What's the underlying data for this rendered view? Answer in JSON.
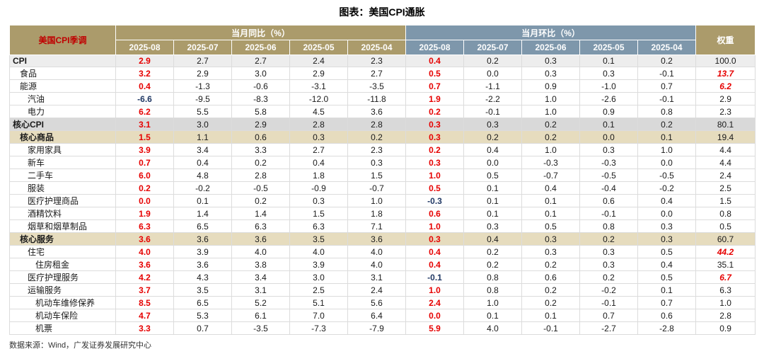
{
  "page": {
    "title": "图表：美国CPI通胀",
    "footer": "数据来源：Wind，广发证券发展研究中心"
  },
  "colors": {
    "tan": "#AB9B6B",
    "blue": "#7E97AB",
    "red": "#E60000",
    "navy": "#203864",
    "corner_red": "#C00000",
    "row_cpi": "#EDEDED",
    "row_gray": "#D9D9D9",
    "row_cream": "#E6DCBE"
  },
  "chart_data": {
    "type": "table",
    "title": "图表：美国CPI通胀",
    "corner_label": "美国CPI季调",
    "yoy_header": "当月同比（%）",
    "mom_header": "当月环比（%）",
    "weight_header": "权重",
    "months": [
      "2025-08",
      "2025-07",
      "2025-06",
      "2025-05",
      "2025-04"
    ],
    "rows": [
      {
        "label": "CPI",
        "indent": 0,
        "bold": true,
        "bg": "cpi",
        "yoy": [
          "2.9",
          "2.7",
          "2.7",
          "2.4",
          "2.3"
        ],
        "mom": [
          "0.4",
          "0.2",
          "0.3",
          "0.1",
          "0.2"
        ],
        "weight": "100.0",
        "weight_red": false
      },
      {
        "label": "食品",
        "indent": 1,
        "bold": false,
        "bg": null,
        "yoy": [
          "3.2",
          "2.9",
          "3.0",
          "2.9",
          "2.7"
        ],
        "mom": [
          "0.5",
          "0.0",
          "0.3",
          "0.3",
          "-0.1"
        ],
        "weight": "13.7",
        "weight_red": true
      },
      {
        "label": "能源",
        "indent": 1,
        "bold": false,
        "bg": null,
        "yoy": [
          "0.4",
          "-1.3",
          "-0.6",
          "-3.1",
          "-3.5"
        ],
        "mom": [
          "0.7",
          "-1.1",
          "0.9",
          "-1.0",
          "0.7"
        ],
        "weight": "6.2",
        "weight_red": true
      },
      {
        "label": "汽油",
        "indent": 2,
        "bold": false,
        "bg": null,
        "yoy": [
          "-6.6",
          "-9.5",
          "-8.3",
          "-12.0",
          "-11.8"
        ],
        "mom": [
          "1.9",
          "-2.2",
          "1.0",
          "-2.6",
          "-0.1"
        ],
        "weight": "2.9",
        "weight_red": false
      },
      {
        "label": "电力",
        "indent": 2,
        "bold": false,
        "bg": null,
        "yoy": [
          "6.2",
          "5.5",
          "5.8",
          "4.5",
          "3.6"
        ],
        "mom": [
          "0.2",
          "-0.1",
          "1.0",
          "0.9",
          "0.8"
        ],
        "weight": "2.3",
        "weight_red": false
      },
      {
        "label": "核心CPI",
        "indent": 0,
        "bold": true,
        "bg": "gray",
        "yoy": [
          "3.1",
          "3.0",
          "2.9",
          "2.8",
          "2.8"
        ],
        "mom": [
          "0.3",
          "0.3",
          "0.2",
          "0.1",
          "0.2"
        ],
        "weight": "80.1",
        "weight_red": false
      },
      {
        "label": "核心商品",
        "indent": 1,
        "bold": true,
        "bg": "cream",
        "yoy": [
          "1.5",
          "1.1",
          "0.6",
          "0.3",
          "0.2"
        ],
        "mom": [
          "0.3",
          "0.2",
          "0.2",
          "0.0",
          "0.1"
        ],
        "weight": "19.4",
        "weight_red": false
      },
      {
        "label": "家用家具",
        "indent": 2,
        "bold": false,
        "bg": null,
        "yoy": [
          "3.9",
          "3.4",
          "3.3",
          "2.7",
          "2.3"
        ],
        "mom": [
          "0.2",
          "0.4",
          "1.0",
          "0.3",
          "1.0"
        ],
        "weight": "4.4",
        "weight_red": false
      },
      {
        "label": "新车",
        "indent": 2,
        "bold": false,
        "bg": null,
        "yoy": [
          "0.7",
          "0.4",
          "0.2",
          "0.4",
          "0.3"
        ],
        "mom": [
          "0.3",
          "0.0",
          "-0.3",
          "-0.3",
          "0.0"
        ],
        "weight": "4.4",
        "weight_red": false
      },
      {
        "label": "二手车",
        "indent": 2,
        "bold": false,
        "bg": null,
        "yoy": [
          "6.0",
          "4.8",
          "2.8",
          "1.8",
          "1.5"
        ],
        "mom": [
          "1.0",
          "0.5",
          "-0.7",
          "-0.5",
          "-0.5"
        ],
        "weight": "2.4",
        "weight_red": false
      },
      {
        "label": "服装",
        "indent": 2,
        "bold": false,
        "bg": null,
        "yoy": [
          "0.2",
          "-0.2",
          "-0.5",
          "-0.9",
          "-0.7"
        ],
        "mom": [
          "0.5",
          "0.1",
          "0.4",
          "-0.4",
          "-0.2"
        ],
        "weight": "2.5",
        "weight_red": false
      },
      {
        "label": "医疗护理商品",
        "indent": 2,
        "bold": false,
        "bg": null,
        "yoy": [
          "0.0",
          "0.1",
          "0.2",
          "0.3",
          "1.0"
        ],
        "mom": [
          "-0.3",
          "0.1",
          "0.1",
          "0.6",
          "0.4"
        ],
        "weight": "1.5",
        "weight_red": false
      },
      {
        "label": "酒精饮料",
        "indent": 2,
        "bold": false,
        "bg": null,
        "yoy": [
          "1.9",
          "1.4",
          "1.4",
          "1.5",
          "1.8"
        ],
        "mom": [
          "0.6",
          "0.1",
          "0.1",
          "-0.1",
          "0.0"
        ],
        "weight": "0.8",
        "weight_red": false
      },
      {
        "label": "烟草和烟草制品",
        "indent": 2,
        "bold": false,
        "bg": null,
        "yoy": [
          "6.3",
          "6.5",
          "6.3",
          "6.3",
          "7.1"
        ],
        "mom": [
          "1.0",
          "0.3",
          "0.5",
          "0.8",
          "0.3"
        ],
        "weight": "0.5",
        "weight_red": false
      },
      {
        "label": "核心服务",
        "indent": 1,
        "bold": true,
        "bg": "cream",
        "yoy": [
          "3.6",
          "3.6",
          "3.6",
          "3.5",
          "3.6"
        ],
        "mom": [
          "0.3",
          "0.4",
          "0.3",
          "0.2",
          "0.3"
        ],
        "weight": "60.7",
        "weight_red": false
      },
      {
        "label": "住宅",
        "indent": 2,
        "bold": false,
        "bg": null,
        "yoy": [
          "4.0",
          "3.9",
          "4.0",
          "4.0",
          "4.0"
        ],
        "mom": [
          "0.4",
          "0.2",
          "0.3",
          "0.3",
          "0.5"
        ],
        "weight": "44.2",
        "weight_red": true
      },
      {
        "label": "住房租金",
        "indent": 3,
        "bold": false,
        "bg": null,
        "yoy": [
          "3.6",
          "3.6",
          "3.8",
          "3.9",
          "4.0"
        ],
        "mom": [
          "0.4",
          "0.2",
          "0.2",
          "0.3",
          "0.4"
        ],
        "weight": "35.1",
        "weight_red": false
      },
      {
        "label": "医疗护理服务",
        "indent": 2,
        "bold": false,
        "bg": null,
        "yoy": [
          "4.2",
          "4.3",
          "3.4",
          "3.0",
          "3.1"
        ],
        "mom": [
          "-0.1",
          "0.8",
          "0.6",
          "0.2",
          "0.5"
        ],
        "weight": "6.7",
        "weight_red": true
      },
      {
        "label": "运输服务",
        "indent": 2,
        "bold": false,
        "bg": null,
        "yoy": [
          "3.7",
          "3.5",
          "3.1",
          "2.5",
          "2.4"
        ],
        "mom": [
          "1.0",
          "0.8",
          "0.2",
          "-0.2",
          "0.1"
        ],
        "weight": "6.3",
        "weight_red": false
      },
      {
        "label": "机动车维修保养",
        "indent": 3,
        "bold": false,
        "bg": null,
        "yoy": [
          "8.5",
          "6.5",
          "5.2",
          "5.1",
          "5.6"
        ],
        "mom": [
          "2.4",
          "1.0",
          "0.2",
          "-0.1",
          "0.7"
        ],
        "weight": "1.0",
        "weight_red": false
      },
      {
        "label": "机动车保险",
        "indent": 3,
        "bold": false,
        "bg": null,
        "yoy": [
          "4.7",
          "5.3",
          "6.1",
          "7.0",
          "6.4"
        ],
        "mom": [
          "0.0",
          "0.1",
          "0.1",
          "0.7",
          "0.6"
        ],
        "weight": "2.8",
        "weight_red": false
      },
      {
        "label": "机票",
        "indent": 3,
        "bold": false,
        "bg": null,
        "yoy": [
          "3.3",
          "0.7",
          "-3.5",
          "-7.3",
          "-7.9"
        ],
        "mom": [
          "5.9",
          "4.0",
          "-0.1",
          "-2.7",
          "-2.8"
        ],
        "weight": "0.9",
        "weight_red": false
      }
    ]
  }
}
